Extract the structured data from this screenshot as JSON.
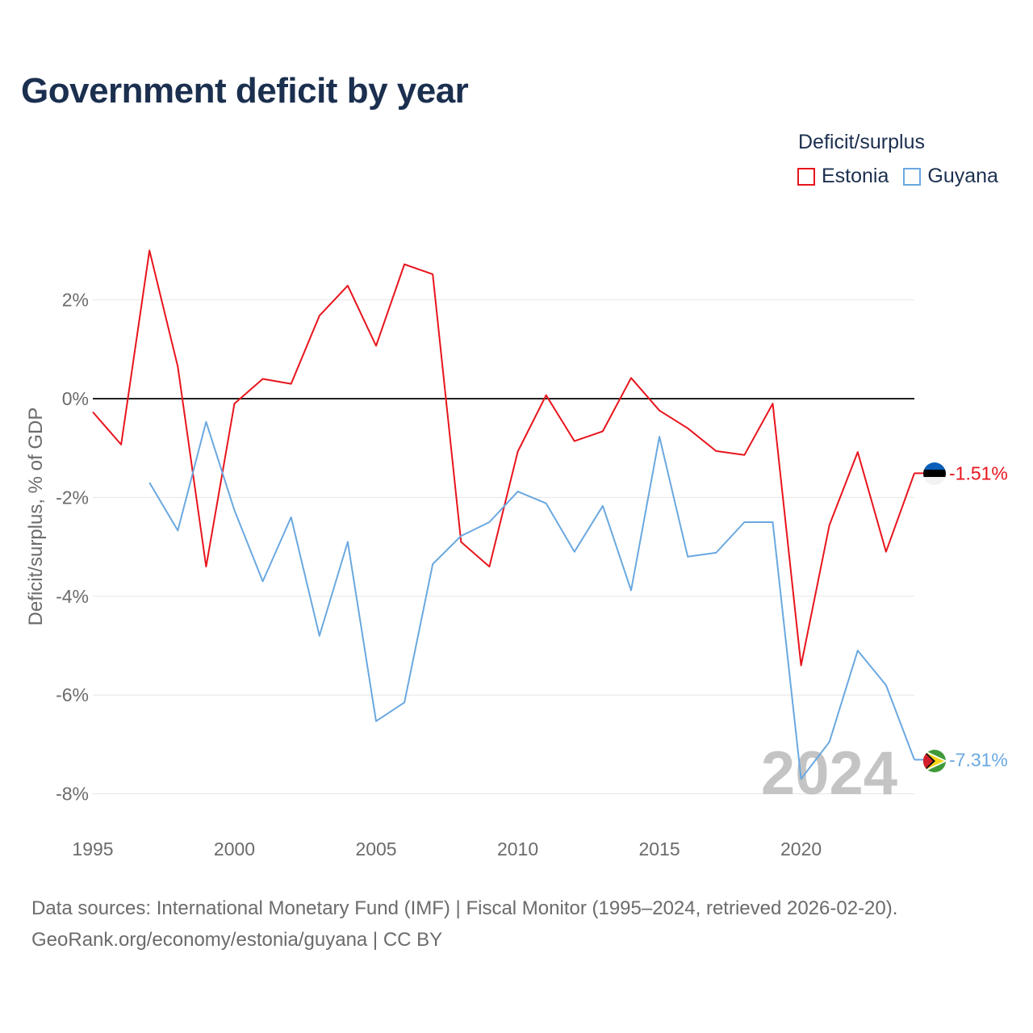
{
  "title": "Government deficit by year",
  "legend": {
    "title": "Deficit/surplus",
    "items": [
      {
        "label": "Estonia",
        "color": "#e8141c"
      },
      {
        "label": "Guyana",
        "color": "#6aa8e0"
      }
    ]
  },
  "year_watermark": "2024",
  "footer": {
    "line1": "Data sources: International Monetary Fund (IMF) | Fiscal Monitor (1995–2024, retrieved 2026-02-20).",
    "line2": "GeoRank.org/economy/estonia/guyana | CC BY"
  },
  "chart_data": {
    "type": "line",
    "title": "Government deficit by year",
    "xlabel": "",
    "ylabel": "Deficit/surplus, % of GDP",
    "xlim": [
      1995,
      2024
    ],
    "ylim": [
      -8.6,
      3.9
    ],
    "x_ticks": [
      1995,
      2000,
      2005,
      2010,
      2015,
      2020
    ],
    "x_tick_labels": [
      "1995",
      "2000",
      "2005",
      "2010",
      "2015",
      "2020"
    ],
    "y_ticks": [
      2,
      0,
      -2,
      -4,
      -6,
      -8
    ],
    "y_tick_labels": [
      "2%",
      "0%",
      "-2%",
      "-4%",
      "-6%",
      "-8%"
    ],
    "grid": true,
    "zero_line": true,
    "legend_position": "top-right",
    "series": [
      {
        "name": "Estonia",
        "color": "#e8141c",
        "x": [
          1995,
          1996,
          1997,
          1998,
          1999,
          2000,
          2001,
          2002,
          2003,
          2004,
          2005,
          2006,
          2007,
          2008,
          2009,
          2010,
          2011,
          2012,
          2013,
          2014,
          2015,
          2016,
          2017,
          2018,
          2019,
          2020,
          2021,
          2022,
          2023,
          2024
        ],
        "values": [
          -0.27,
          -0.93,
          3.0,
          0.65,
          -3.4,
          -0.1,
          0.4,
          0.3,
          1.68,
          2.29,
          1.07,
          2.72,
          2.52,
          -2.9,
          -3.4,
          -1.07,
          0.07,
          -0.86,
          -0.66,
          0.42,
          -0.24,
          -0.6,
          -1.06,
          -1.14,
          -0.1,
          -5.4,
          -2.56,
          -1.08,
          -3.1,
          -1.51
        ],
        "end_label": "-1.51%"
      },
      {
        "name": "Guyana",
        "color": "#6aa8e0",
        "x": [
          1997,
          1998,
          1999,
          2000,
          2001,
          2002,
          2003,
          2004,
          2005,
          2006,
          2007,
          2008,
          2009,
          2010,
          2011,
          2012,
          2013,
          2014,
          2015,
          2016,
          2017,
          2018,
          2019,
          2020,
          2021,
          2022,
          2023,
          2024
        ],
        "values": [
          -1.7,
          -2.67,
          -0.47,
          -2.26,
          -3.7,
          -2.4,
          -4.8,
          -2.9,
          -6.53,
          -6.15,
          -3.35,
          -2.78,
          -2.5,
          -1.88,
          -2.12,
          -3.1,
          -2.17,
          -3.88,
          -0.77,
          -3.2,
          -3.12,
          -2.5,
          -2.5,
          -7.7,
          -6.95,
          -5.1,
          -5.8,
          -7.31
        ],
        "end_label": "-7.31%"
      }
    ]
  }
}
